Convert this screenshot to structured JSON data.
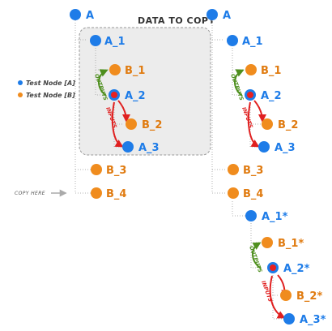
{
  "title": "DATA TO COPY",
  "copy_here": "COPY HERE",
  "legend": [
    {
      "label": "Test Node [A]",
      "color": "#1e7ce8"
    },
    {
      "label": "Test Node [B]",
      "color": "#f08c1e"
    }
  ],
  "colors": {
    "node_a": "#1e7ce8",
    "node_b": "#f08c1e",
    "label_a": "#1e7ce8",
    "label_b": "#e07b10",
    "selected_ring": "#e82020",
    "outputs": "#4e8f1e",
    "inputs": "#e02020",
    "tree_line": "#b0b0b0",
    "copy_box_fill": "#ececec",
    "copy_box_stroke": "#999999"
  },
  "edge_labels": {
    "outputs": "OUTPUTS",
    "inputs": "INPUTS"
  },
  "left_tree": [
    {
      "label": "A",
      "type": "a"
    },
    {
      "label": "A_1",
      "type": "a"
    },
    {
      "label": "B_1",
      "type": "b"
    },
    {
      "label": "A_2",
      "type": "a",
      "selected": true
    },
    {
      "label": "B_2",
      "type": "b"
    },
    {
      "label": "A_3",
      "type": "a"
    },
    {
      "label": "B_3",
      "type": "b"
    },
    {
      "label": "B_4",
      "type": "b"
    }
  ],
  "right_tree": [
    {
      "label": "A",
      "type": "a"
    },
    {
      "label": "A_1",
      "type": "a"
    },
    {
      "label": "B_1",
      "type": "b"
    },
    {
      "label": "A_2",
      "type": "a",
      "selected": true
    },
    {
      "label": "B_2",
      "type": "b"
    },
    {
      "label": "A_3",
      "type": "a"
    },
    {
      "label": "B_3",
      "type": "b"
    },
    {
      "label": "B_4",
      "type": "b"
    },
    {
      "label": "A_1*",
      "type": "a"
    },
    {
      "label": "B_1*",
      "type": "b"
    },
    {
      "label": "A_2*",
      "type": "a",
      "selected": true
    },
    {
      "label": "B_2*",
      "type": "b"
    },
    {
      "label": "A_3*",
      "type": "a"
    }
  ]
}
